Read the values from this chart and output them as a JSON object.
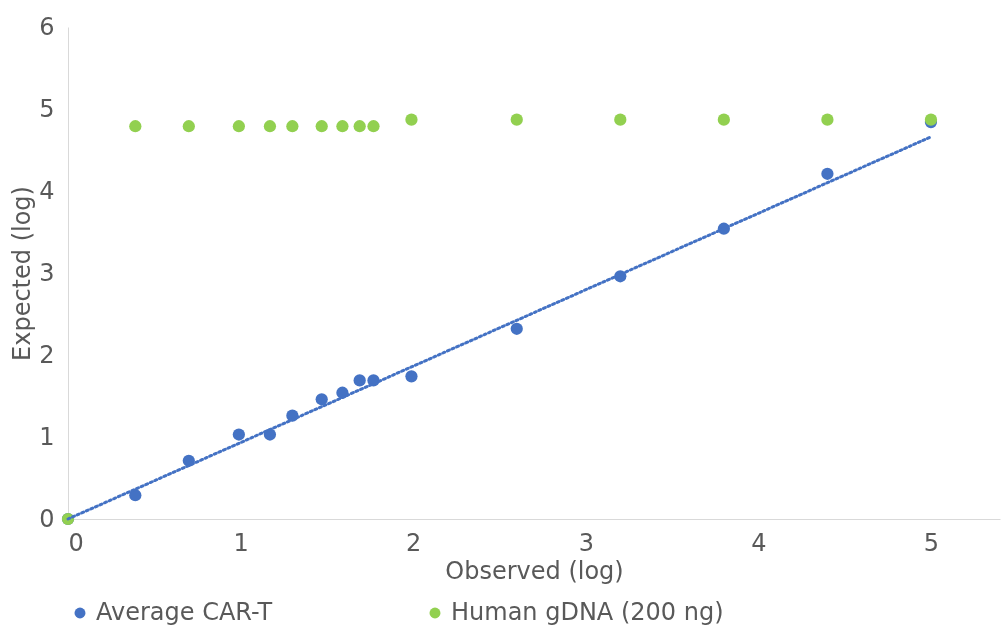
{
  "chart_data": {
    "type": "scatter",
    "xlabel": "Observed (log)",
    "ylabel": "Expected (log)",
    "x": [
      0,
      0.39,
      0.7,
      0.99,
      1.17,
      1.3,
      1.47,
      1.59,
      1.69,
      1.77,
      1.99,
      2.6,
      3.2,
      3.8,
      4.4,
      5
    ],
    "series": [
      {
        "name": "Average CAR-T",
        "color": "#4472c4",
        "values": [
          0,
          0.29,
          0.71,
          1.03,
          1.03,
          1.26,
          1.46,
          1.54,
          1.69,
          1.69,
          1.74,
          2.32,
          2.96,
          3.54,
          4.21,
          4.84
        ]
      },
      {
        "name": "Human gDNA (200 ng)",
        "color": "#92d050",
        "values": [
          0,
          4.79,
          4.79,
          4.79,
          4.79,
          4.79,
          4.79,
          4.79,
          4.79,
          4.79,
          4.87,
          4.87,
          4.87,
          4.87,
          4.87,
          4.87
        ]
      },
      {
        "type": "line",
        "color": "#4472c4",
        "line_style": "dotted",
        "marker": "none",
        "x": [
          0,
          5
        ],
        "values": [
          0,
          4.66
        ]
      }
    ],
    "xlim": [
      0,
      5.4
    ],
    "xticks": [
      0,
      1,
      2,
      3,
      4,
      5
    ],
    "ylim": [
      0,
      6
    ],
    "yticks": [
      0,
      1,
      2,
      3,
      4,
      5,
      6
    ],
    "grid": false,
    "legend": "bottom",
    "marker": "circle"
  }
}
